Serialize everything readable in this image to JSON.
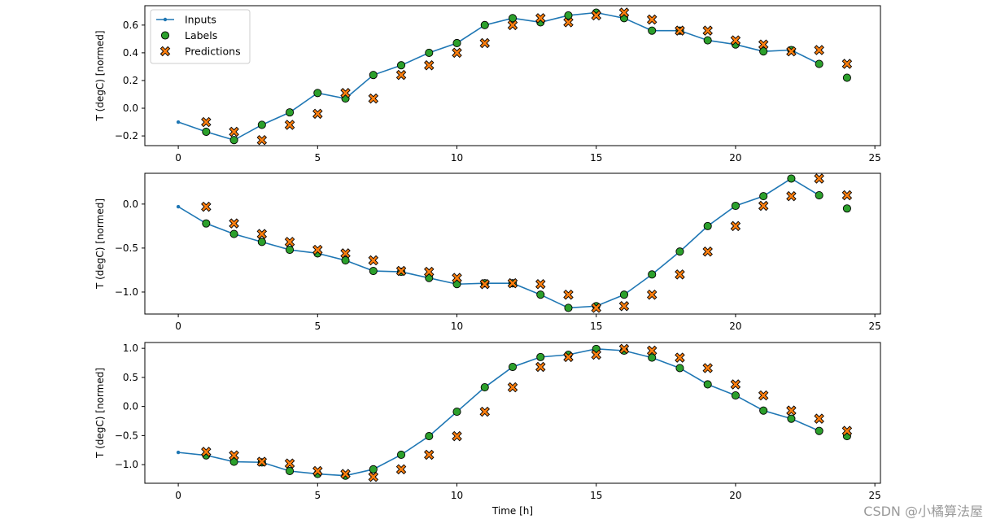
{
  "chart_data": {
    "type": "line",
    "xlabel": "Time [h]",
    "ylabel": "T (degC) [normed]",
    "xlim": [
      -1.2,
      25.2
    ],
    "xticks": [
      0,
      5,
      10,
      15,
      20,
      25
    ],
    "legend": {
      "placement": "top-left",
      "entries": [
        "Inputs",
        "Labels",
        "Predictions"
      ]
    },
    "colors": {
      "inputs": "#1f77b4",
      "labels": "#2ca02c",
      "predictions": "#ff7f0e",
      "marker_edge": "#000000"
    },
    "panels": [
      {
        "ylim": [
          -0.27,
          0.74
        ],
        "yticks": [
          -0.2,
          0.0,
          0.2,
          0.4,
          0.6
        ],
        "ytick_labels": [
          "−0.2",
          "0.0",
          "0.2",
          "0.4",
          "0.6"
        ],
        "series": [
          {
            "name": "Inputs",
            "x": [
              0,
              1,
              2,
              3,
              4,
              5,
              6,
              7,
              8,
              9,
              10,
              11,
              12,
              13,
              14,
              15,
              16,
              17,
              18,
              19,
              20,
              21,
              22,
              23
            ],
            "values": [
              -0.1,
              -0.17,
              -0.23,
              -0.12,
              -0.03,
              0.11,
              0.07,
              0.24,
              0.31,
              0.4,
              0.47,
              0.6,
              0.65,
              0.62,
              0.67,
              0.69,
              0.65,
              0.56,
              0.56,
              0.49,
              0.46,
              0.41,
              0.42,
              0.32
            ]
          },
          {
            "name": "Labels",
            "x": [
              1,
              2,
              3,
              4,
              5,
              6,
              7,
              8,
              9,
              10,
              11,
              12,
              13,
              14,
              15,
              16,
              17,
              18,
              19,
              20,
              21,
              22,
              23,
              24
            ],
            "values": [
              -0.17,
              -0.23,
              -0.12,
              -0.03,
              0.11,
              0.07,
              0.24,
              0.31,
              0.4,
              0.47,
              0.6,
              0.65,
              0.62,
              0.67,
              0.69,
              0.65,
              0.56,
              0.56,
              0.49,
              0.46,
              0.41,
              0.42,
              0.32,
              0.22
            ]
          },
          {
            "name": "Predictions",
            "x": [
              1,
              2,
              3,
              4,
              5,
              6,
              7,
              8,
              9,
              10,
              11,
              12,
              13,
              14,
              15,
              16,
              17,
              18,
              19,
              20,
              21,
              22,
              23,
              24
            ],
            "values": [
              -0.1,
              -0.17,
              -0.23,
              -0.12,
              -0.04,
              0.11,
              0.07,
              0.24,
              0.31,
              0.4,
              0.47,
              0.6,
              0.65,
              0.62,
              0.67,
              0.69,
              0.64,
              0.56,
              0.56,
              0.49,
              0.46,
              0.41,
              0.42,
              0.32
            ]
          }
        ]
      },
      {
        "ylim": [
          -1.25,
          0.35
        ],
        "yticks": [
          -1.0,
          -0.5,
          0.0
        ],
        "ytick_labels": [
          "−1.0",
          "−0.5",
          "0.0"
        ],
        "series": [
          {
            "name": "Inputs",
            "x": [
              0,
              1,
              2,
              3,
              4,
              5,
              6,
              7,
              8,
              9,
              10,
              11,
              12,
              13,
              14,
              15,
              16,
              17,
              18,
              19,
              20,
              21,
              22,
              23
            ],
            "values": [
              -0.03,
              -0.22,
              -0.34,
              -0.43,
              -0.52,
              -0.56,
              -0.64,
              -0.76,
              -0.77,
              -0.84,
              -0.91,
              -0.9,
              -0.9,
              -1.03,
              -1.18,
              -1.16,
              -1.03,
              -0.8,
              -0.54,
              -0.25,
              -0.02,
              0.09,
              0.29,
              0.1
            ]
          },
          {
            "name": "Labels",
            "x": [
              1,
              2,
              3,
              4,
              5,
              6,
              7,
              8,
              9,
              10,
              11,
              12,
              13,
              14,
              15,
              16,
              17,
              18,
              19,
              20,
              21,
              22,
              23,
              24
            ],
            "values": [
              -0.22,
              -0.34,
              -0.43,
              -0.52,
              -0.56,
              -0.64,
              -0.76,
              -0.77,
              -0.84,
              -0.91,
              -0.9,
              -0.9,
              -1.03,
              -1.18,
              -1.16,
              -1.03,
              -0.8,
              -0.54,
              -0.25,
              -0.02,
              0.09,
              0.29,
              0.1,
              -0.05
            ]
          },
          {
            "name": "Predictions",
            "x": [
              1,
              2,
              3,
              4,
              5,
              6,
              7,
              8,
              9,
              10,
              11,
              12,
              13,
              14,
              15,
              16,
              17,
              18,
              19,
              20,
              21,
              22,
              23,
              24
            ],
            "values": [
              -0.03,
              -0.22,
              -0.34,
              -0.43,
              -0.52,
              -0.56,
              -0.64,
              -0.76,
              -0.77,
              -0.84,
              -0.91,
              -0.9,
              -0.91,
              -1.03,
              -1.18,
              -1.16,
              -1.03,
              -0.8,
              -0.54,
              -0.25,
              -0.02,
              0.09,
              0.29,
              0.1
            ]
          }
        ]
      },
      {
        "ylim": [
          -1.32,
          1.1
        ],
        "yticks": [
          -1.0,
          -0.5,
          0.0,
          0.5,
          1.0
        ],
        "ytick_labels": [
          "−1.0",
          "−0.5",
          "0.0",
          "0.5",
          "1.0"
        ],
        "series": [
          {
            "name": "Inputs",
            "x": [
              0,
              1,
              2,
              3,
              4,
              5,
              6,
              7,
              8,
              9,
              10,
              11,
              12,
              13,
              14,
              15,
              16,
              17,
              18,
              19,
              20,
              21,
              22,
              23
            ],
            "values": [
              -0.79,
              -0.84,
              -0.95,
              -0.96,
              -1.11,
              -1.16,
              -1.19,
              -1.08,
              -0.83,
              -0.51,
              -0.09,
              0.33,
              0.68,
              0.85,
              0.89,
              0.99,
              0.96,
              0.84,
              0.66,
              0.38,
              0.19,
              -0.07,
              -0.21,
              -0.42
            ]
          },
          {
            "name": "Labels",
            "x": [
              1,
              2,
              3,
              4,
              5,
              6,
              7,
              8,
              9,
              10,
              11,
              12,
              13,
              14,
              15,
              16,
              17,
              18,
              19,
              20,
              21,
              22,
              23,
              24
            ],
            "values": [
              -0.84,
              -0.95,
              -0.96,
              -1.11,
              -1.16,
              -1.19,
              -1.08,
              -0.83,
              -0.51,
              -0.09,
              0.33,
              0.68,
              0.85,
              0.89,
              0.99,
              0.96,
              0.84,
              0.66,
              0.38,
              0.19,
              -0.07,
              -0.21,
              -0.42,
              -0.51
            ]
          },
          {
            "name": "Predictions",
            "x": [
              1,
              2,
              3,
              4,
              5,
              6,
              7,
              8,
              9,
              10,
              11,
              12,
              13,
              14,
              15,
              16,
              17,
              18,
              19,
              20,
              21,
              22,
              23,
              24
            ],
            "values": [
              -0.78,
              -0.84,
              -0.95,
              -0.98,
              -1.11,
              -1.16,
              -1.21,
              -1.08,
              -0.83,
              -0.51,
              -0.09,
              0.33,
              0.68,
              0.85,
              0.89,
              0.99,
              0.96,
              0.84,
              0.66,
              0.38,
              0.19,
              -0.07,
              -0.21,
              -0.42
            ]
          }
        ]
      }
    ]
  },
  "watermark": "CSDN @小橘算法屋"
}
